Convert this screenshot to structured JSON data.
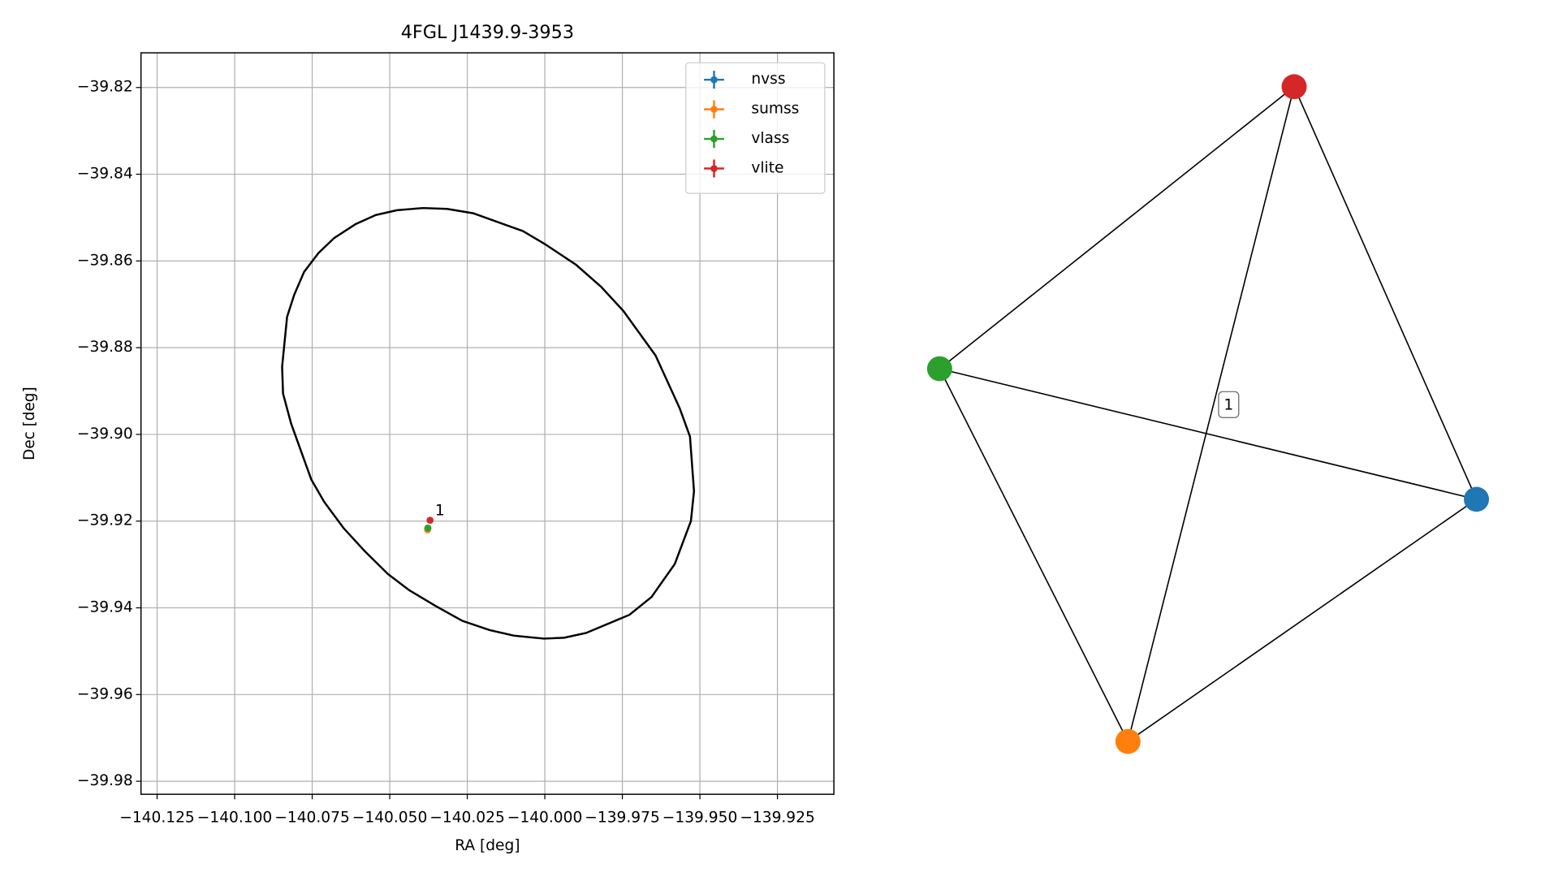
{
  "chart_data": [
    {
      "type": "scatter",
      "title": "4FGL J1439.9-3953",
      "xlabel": "RA [deg]",
      "ylabel": "Dec [deg]",
      "xlim": [
        -140.1302,
        -139.9068
      ],
      "ylim": [
        -39.983,
        -39.812
      ],
      "xticks": [
        {
          "value": -140.125,
          "label": "−140.125"
        },
        {
          "value": -140.1,
          "label": "−140.100"
        },
        {
          "value": -140.075,
          "label": "−140.075"
        },
        {
          "value": -140.05,
          "label": "−140.050"
        },
        {
          "value": -140.025,
          "label": "−140.025"
        },
        {
          "value": -140.0,
          "label": "−140.000"
        },
        {
          "value": -139.975,
          "label": "−139.975"
        },
        {
          "value": -139.95,
          "label": "−139.950"
        },
        {
          "value": -139.925,
          "label": "−139.925"
        }
      ],
      "yticks": [
        {
          "value": -39.82,
          "label": "−39.82"
        },
        {
          "value": -39.84,
          "label": "−39.84"
        },
        {
          "value": -39.86,
          "label": "−39.86"
        },
        {
          "value": -39.88,
          "label": "−39.88"
        },
        {
          "value": -39.9,
          "label": "−39.90"
        },
        {
          "value": -39.92,
          "label": "−39.92"
        },
        {
          "value": -39.94,
          "label": "−39.94"
        },
        {
          "value": -39.96,
          "label": "−39.96"
        },
        {
          "value": -39.98,
          "label": "−39.98"
        }
      ],
      "grid": true,
      "legend": "upper right",
      "series": [
        {
          "name": "nvss",
          "color": "#1f77b4",
          "x": [
            -140.0377
          ],
          "y": [
            -39.9216
          ]
        },
        {
          "name": "sumss",
          "color": "#ff7f0e",
          "x": [
            -140.0378
          ],
          "y": [
            -39.922
          ]
        },
        {
          "name": "vlass",
          "color": "#2ca02c",
          "x": [
            -140.0377
          ],
          "y": [
            -39.9216
          ]
        },
        {
          "name": "vlite",
          "color": "#d62728",
          "x": [
            -140.037
          ],
          "y": [
            -39.9198
          ]
        }
      ],
      "annotations": [
        {
          "text": "1",
          "x": -140.037,
          "y": -39.9198
        }
      ],
      "lines": [
        {
          "color": "#000000",
          "x": [
            -140.0393,
            -140.0315,
            -140.0231,
            -140.0071,
            -140.0,
            -139.9899,
            -139.9818,
            -139.9747,
            -139.9643,
            -139.9565,
            -139.9532,
            -139.9519,
            -139.9529,
            -139.9581,
            -139.9656,
            -139.9727,
            -139.9867,
            -139.9938,
            -140.0003,
            -140.0101,
            -140.0179,
            -140.0266,
            -140.0354,
            -140.0438,
            -140.0506,
            -140.0581,
            -140.0649,
            -140.0711,
            -140.0753,
            -140.0818,
            -140.0844,
            -140.0847,
            -140.0831,
            -140.0808,
            -140.0776,
            -140.073,
            -140.0679,
            -140.061,
            -140.0545,
            -140.0477,
            -140.0393
          ],
          "y": [
            -39.8478,
            -39.848,
            -39.849,
            -39.8531,
            -39.8561,
            -39.8609,
            -39.866,
            -39.8715,
            -39.8818,
            -39.894,
            -39.9005,
            -39.9131,
            -39.92,
            -39.9299,
            -39.9375,
            -39.9416,
            -39.9458,
            -39.9469,
            -39.9471,
            -39.9464,
            -39.9451,
            -39.943,
            -39.9395,
            -39.9359,
            -39.9322,
            -39.9269,
            -39.9216,
            -39.9156,
            -39.9104,
            -39.8975,
            -39.8906,
            -39.8844,
            -39.8729,
            -39.8678,
            -39.8625,
            -39.8582,
            -39.8547,
            -39.8515,
            -39.8494,
            -39.8483,
            -39.8478
          ]
        }
      ]
    },
    {
      "type": "network",
      "edge_color": "#000000",
      "edges": [
        {
          "source": 0,
          "target": 1
        },
        {
          "source": 0,
          "target": 2
        },
        {
          "source": 0,
          "target": 3
        },
        {
          "source": 1,
          "target": 2
        },
        {
          "source": 1,
          "target": 3,
          "label": "1"
        },
        {
          "source": 2,
          "target": 3
        }
      ]
    }
  ]
}
